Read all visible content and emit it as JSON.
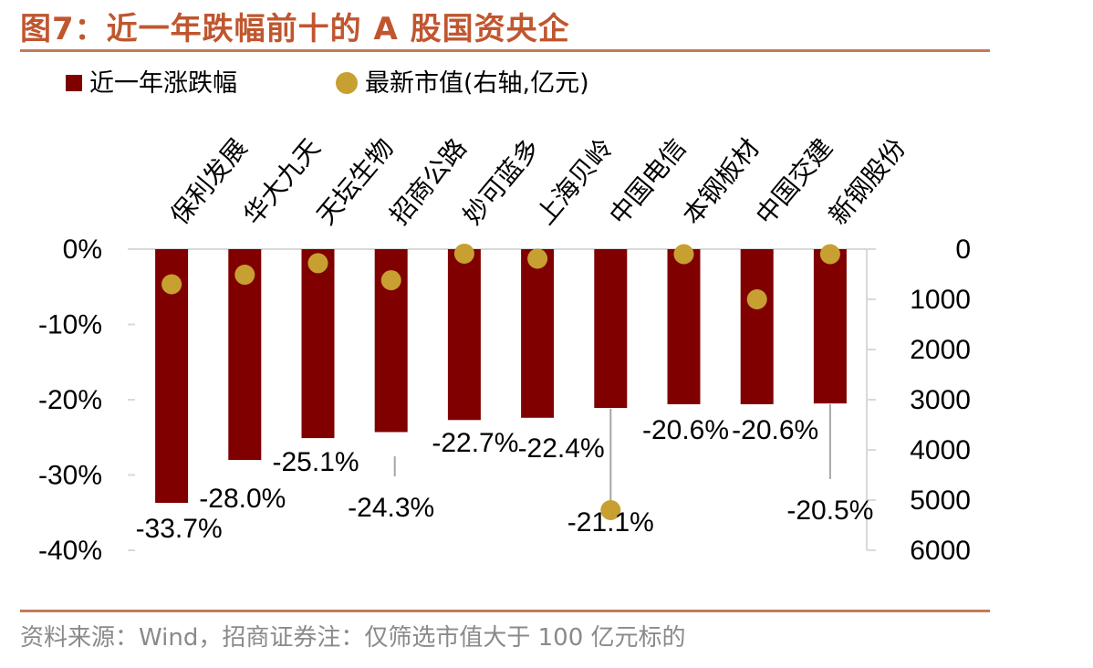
{
  "title": "图7：近一年跌幅前十的 A 股国资央企",
  "source": "资料来源：Wind，招商证券注：仅筛选市值大于 100 亿元标的",
  "colors": {
    "title": "#c0562f",
    "bar": "#800000",
    "dot": "#c8a032",
    "rule": "#c47a5a",
    "axis": "#d9d9d9",
    "leader": "#a6a6a6"
  },
  "chart_data": {
    "type": "bar",
    "categories": [
      "保利发展",
      "华大九天",
      "天坛生物",
      "招商公路",
      "妙可蓝多",
      "上海贝岭",
      "中国电信",
      "本钢板材",
      "中国交建",
      "新钢股份"
    ],
    "series": [
      {
        "name": "近一年涨跌幅",
        "type": "bar",
        "axis": "left",
        "values": [
          -33.7,
          -28.0,
          -25.1,
          -24.3,
          -22.7,
          -22.4,
          -21.1,
          -20.6,
          -20.6,
          -20.5
        ],
        "labels": [
          "-33.7%",
          "-28.0%",
          "-25.1%",
          "-24.3%",
          "-22.7%",
          "-22.4%",
          "-21.1%",
          "-20.6%",
          "-20.6%",
          "-20.5%"
        ]
      },
      {
        "name": "最新市值(右轴,亿元)",
        "type": "scatter",
        "axis": "right",
        "values": [
          700,
          510,
          280,
          620,
          90,
          190,
          5200,
          100,
          1000,
          100
        ]
      }
    ],
    "y_left": {
      "min": -40,
      "max": 0,
      "ticks": [
        "0%",
        "-10%",
        "-20%",
        "-30%",
        "-40%"
      ]
    },
    "y_right": {
      "min": 0,
      "max": 6000,
      "inverted": true,
      "ticks": [
        "0",
        "1000",
        "2000",
        "3000",
        "4000",
        "5000",
        "6000"
      ]
    },
    "legend": {
      "placement": "top-left",
      "items": [
        "近一年涨跌幅",
        "最新市值(右轴,亿元)"
      ]
    },
    "grid": false
  }
}
